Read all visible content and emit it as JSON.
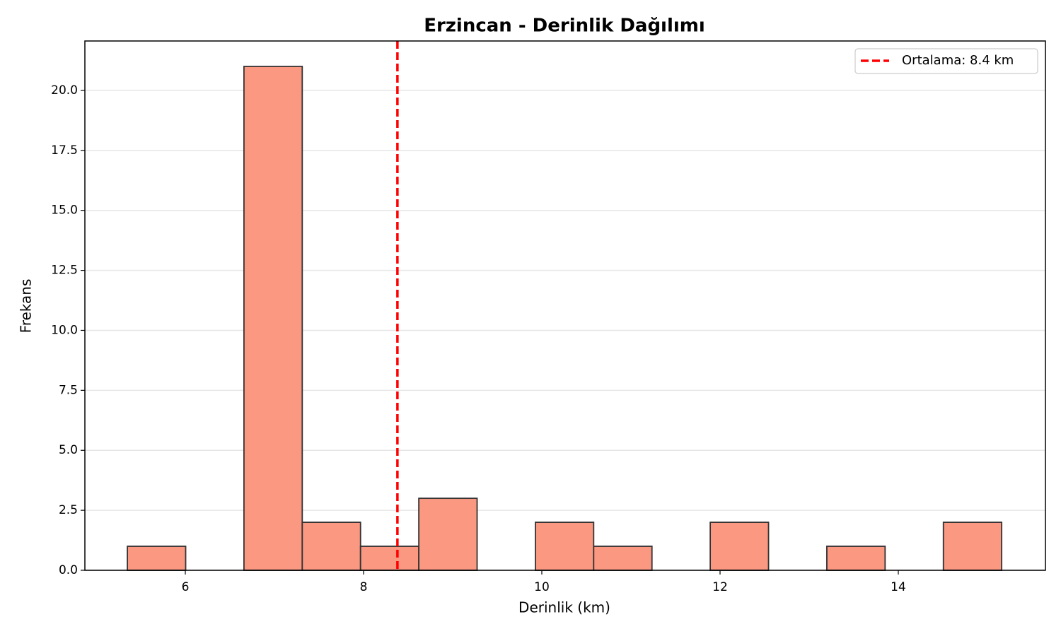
{
  "chart_data": {
    "type": "histogram",
    "title": "Erzincan - Derinlik Dağılımı",
    "x_label": "Derinlik (km)",
    "y_label": "Frekans",
    "bins": [
      5.35,
      6.004,
      6.658,
      7.312,
      7.966,
      8.62,
      9.274,
      9.928,
      10.582,
      11.236,
      11.89,
      12.544,
      13.198,
      13.852,
      14.506,
      15.16
    ],
    "values": [
      1,
      0,
      21,
      2,
      1,
      3,
      0,
      2,
      1,
      0,
      2,
      0,
      1,
      0,
      2
    ],
    "color": "#fa9882",
    "edgecolor": "#333333",
    "xlim": [
      4.873,
      15.651
    ],
    "xticks": [
      6,
      8,
      10,
      12,
      14
    ],
    "ylim": [
      0,
      22.06
    ],
    "yticks": [
      {
        "value": 0,
        "label": "0.0"
      },
      2.5,
      {
        "value": 5,
        "label": "5.0"
      },
      7.5,
      {
        "value": 10,
        "label": "10.0"
      },
      12.5,
      {
        "value": 15,
        "label": "15.0"
      },
      17.5,
      {
        "value": 20,
        "label": "20.0"
      }
    ],
    "grid": true,
    "grid_axis": "y",
    "mean_line": {
      "value": 8.38,
      "label": "Ortalama: 8.4 km",
      "color": "#ff0000"
    },
    "legend": "upper right"
  }
}
